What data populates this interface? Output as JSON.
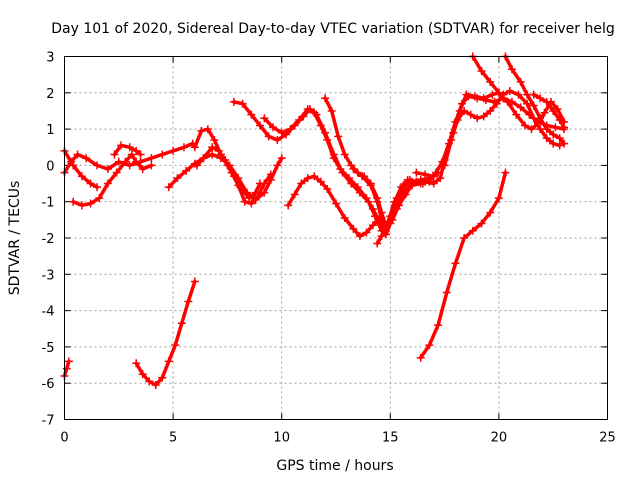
{
  "chart_data": {
    "type": "scatter",
    "title": "Day 101 of 2020, Sidereal Day-to-day VTEC variation (SDTVAR) for receiver helg",
    "xlabel": "GPS time / hours",
    "ylabel": "SDTVAR / TECUs",
    "xlim": [
      0,
      25
    ],
    "ylim": [
      -7,
      3
    ],
    "xticks": [
      0,
      5,
      10,
      15,
      20,
      25
    ],
    "yticks": [
      -7,
      -6,
      -5,
      -4,
      -3,
      -2,
      -1,
      0,
      1,
      2,
      3
    ],
    "xtick_labels": [
      "0",
      "5",
      "10",
      "15",
      "20",
      "25"
    ],
    "ytick_labels": [
      "-7",
      "-6",
      "-5",
      "-4",
      "-3",
      "-2",
      "-1",
      "0",
      "1",
      "2",
      "3"
    ],
    "grid": true,
    "marker": "+",
    "color": "#ff0000",
    "series": [
      {
        "name": "s1",
        "points": [
          [
            0,
            -0.2
          ],
          [
            0.3,
            0.1
          ],
          [
            0.6,
            0.3
          ],
          [
            1.0,
            0.2
          ],
          [
            1.5,
            0.0
          ],
          [
            2.0,
            -0.1
          ],
          [
            2.5,
            0.1
          ],
          [
            3.0,
            0.0
          ],
          [
            3.5,
            0.1
          ],
          [
            4.0,
            0.2
          ],
          [
            4.5,
            0.3
          ],
          [
            5.0,
            0.4
          ],
          [
            5.5,
            0.5
          ],
          [
            5.9,
            0.6
          ]
        ]
      },
      {
        "name": "s2",
        "points": [
          [
            0,
            0.4
          ],
          [
            0.4,
            0.0
          ],
          [
            0.8,
            -0.3
          ],
          [
            1.2,
            -0.5
          ],
          [
            1.5,
            -0.6
          ]
        ]
      },
      {
        "name": "s3",
        "points": [
          [
            0.4,
            -1.0
          ],
          [
            0.8,
            -1.1
          ],
          [
            1.2,
            -1.05
          ],
          [
            1.6,
            -0.9
          ],
          [
            2.0,
            -0.5
          ],
          [
            2.4,
            -0.2
          ],
          [
            2.8,
            0.1
          ],
          [
            3.1,
            0.3
          ],
          [
            3.3,
            0.1
          ],
          [
            3.6,
            -0.1
          ],
          [
            4.0,
            0.0
          ]
        ]
      },
      {
        "name": "s4",
        "points": [
          [
            2.3,
            0.3
          ],
          [
            2.6,
            0.55
          ],
          [
            3.0,
            0.5
          ],
          [
            3.3,
            0.4
          ],
          [
            3.5,
            0.3
          ]
        ]
      },
      {
        "name": "s5",
        "points": [
          [
            0,
            -5.8
          ],
          [
            0.1,
            -5.6
          ],
          [
            0.2,
            -5.4
          ]
        ]
      },
      {
        "name": "s6",
        "points": [
          [
            3.3,
            -5.45
          ],
          [
            3.6,
            -5.75
          ],
          [
            3.9,
            -5.95
          ],
          [
            4.2,
            -6.05
          ],
          [
            4.5,
            -5.85
          ],
          [
            4.8,
            -5.4
          ],
          [
            5.1,
            -4.95
          ],
          [
            5.4,
            -4.35
          ],
          [
            5.7,
            -3.75
          ],
          [
            6.0,
            -3.2
          ]
        ]
      },
      {
        "name": "s7",
        "points": [
          [
            4.8,
            -0.6
          ],
          [
            5.2,
            -0.35
          ],
          [
            5.6,
            -0.15
          ],
          [
            6.0,
            0.05
          ],
          [
            6.4,
            0.2
          ],
          [
            6.8,
            0.3
          ],
          [
            7.2,
            0.2
          ],
          [
            7.6,
            0.0
          ],
          [
            8.0,
            -0.35
          ],
          [
            8.4,
            -0.75
          ],
          [
            8.8,
            -0.95
          ],
          [
            9.2,
            -0.75
          ],
          [
            9.5,
            -0.4
          ],
          [
            9.8,
            0.0
          ],
          [
            10.0,
            0.2
          ]
        ]
      },
      {
        "name": "s8",
        "points": [
          [
            6.0,
            0.5
          ],
          [
            6.3,
            0.95
          ],
          [
            6.6,
            1.0
          ],
          [
            6.9,
            0.7
          ],
          [
            7.2,
            0.3
          ],
          [
            7.5,
            0.0
          ],
          [
            7.8,
            -0.3
          ],
          [
            8.1,
            -0.6
          ],
          [
            8.5,
            -0.9
          ],
          [
            8.8,
            -0.75
          ],
          [
            9.0,
            -0.5
          ]
        ]
      },
      {
        "name": "s9",
        "points": [
          [
            6.1,
            0.0
          ],
          [
            6.4,
            0.2
          ],
          [
            6.8,
            0.5
          ],
          [
            7.1,
            0.4
          ],
          [
            7.4,
            0.15
          ],
          [
            7.7,
            -0.2
          ],
          [
            8.0,
            -0.55
          ],
          [
            8.3,
            -1.0
          ],
          [
            8.6,
            -1.05
          ],
          [
            8.9,
            -0.85
          ],
          [
            9.2,
            -0.5
          ],
          [
            9.5,
            -0.25
          ]
        ]
      },
      {
        "name": "s10",
        "points": [
          [
            7.8,
            1.75
          ],
          [
            8.2,
            1.7
          ],
          [
            8.6,
            1.4
          ],
          [
            9.0,
            1.1
          ],
          [
            9.4,
            0.8
          ],
          [
            9.8,
            0.7
          ],
          [
            10.2,
            0.85
          ],
          [
            10.6,
            1.1
          ],
          [
            11.0,
            1.35
          ],
          [
            11.3,
            1.55
          ],
          [
            11.6,
            1.4
          ],
          [
            12.0,
            0.9
          ],
          [
            12.4,
            0.3
          ],
          [
            12.8,
            -0.2
          ],
          [
            13.2,
            -0.5
          ],
          [
            13.6,
            -0.75
          ],
          [
            14.0,
            -1.0
          ],
          [
            14.3,
            -1.4
          ],
          [
            14.6,
            -1.8
          ],
          [
            14.9,
            -1.6
          ],
          [
            15.2,
            -1.1
          ],
          [
            15.6,
            -0.7
          ],
          [
            16.0,
            -0.45
          ],
          [
            16.4,
            -0.4
          ],
          [
            16.8,
            -0.35
          ],
          [
            17.2,
            -0.2
          ]
        ]
      },
      {
        "name": "s11",
        "points": [
          [
            9.2,
            1.3
          ],
          [
            9.6,
            1.05
          ],
          [
            10.0,
            0.9
          ],
          [
            10.4,
            1.0
          ],
          [
            10.8,
            1.25
          ],
          [
            11.2,
            1.55
          ],
          [
            11.5,
            1.45
          ],
          [
            11.8,
            1.1
          ],
          [
            12.1,
            0.7
          ],
          [
            12.4,
            0.2
          ],
          [
            12.7,
            -0.1
          ],
          [
            13.1,
            -0.35
          ],
          [
            13.5,
            -0.6
          ],
          [
            13.9,
            -0.9
          ],
          [
            14.2,
            -1.2
          ],
          [
            14.5,
            -1.55
          ],
          [
            14.8,
            -1.8
          ],
          [
            15.1,
            -1.5
          ],
          [
            15.4,
            -1.1
          ],
          [
            15.7,
            -0.8
          ],
          [
            16.0,
            -0.55
          ],
          [
            16.4,
            -0.5
          ],
          [
            16.8,
            -0.45
          ]
        ]
      },
      {
        "name": "s12",
        "points": [
          [
            10.3,
            -1.1
          ],
          [
            10.6,
            -0.8
          ],
          [
            10.9,
            -0.5
          ],
          [
            11.2,
            -0.35
          ],
          [
            11.5,
            -0.3
          ],
          [
            11.8,
            -0.45
          ],
          [
            12.1,
            -0.65
          ],
          [
            12.5,
            -1.05
          ],
          [
            12.9,
            -1.45
          ],
          [
            13.3,
            -1.75
          ],
          [
            13.6,
            -1.95
          ],
          [
            13.9,
            -1.85
          ],
          [
            14.2,
            -1.65
          ],
          [
            14.5,
            -1.45
          ]
        ]
      },
      {
        "name": "s13",
        "points": [
          [
            12.0,
            1.85
          ],
          [
            12.3,
            1.5
          ],
          [
            12.6,
            0.8
          ],
          [
            12.9,
            0.3
          ],
          [
            13.2,
            0.0
          ],
          [
            13.5,
            -0.2
          ],
          [
            13.8,
            -0.3
          ],
          [
            14.1,
            -0.5
          ],
          [
            14.4,
            -0.9
          ],
          [
            14.6,
            -1.3
          ],
          [
            14.8,
            -1.7
          ],
          [
            15.0,
            -1.4
          ],
          [
            15.3,
            -0.9
          ],
          [
            15.6,
            -0.55
          ],
          [
            15.9,
            -0.4
          ],
          [
            16.2,
            -0.45
          ],
          [
            16.5,
            -0.5
          ],
          [
            16.8,
            -0.4
          ],
          [
            17.1,
            -0.2
          ]
        ]
      },
      {
        "name": "s14",
        "points": [
          [
            13.3,
            -0.1
          ],
          [
            13.7,
            -0.3
          ],
          [
            14.1,
            -0.55
          ],
          [
            14.4,
            -1.0
          ],
          [
            14.6,
            -1.45
          ],
          [
            14.8,
            -1.9
          ],
          [
            15.0,
            -1.6
          ],
          [
            15.3,
            -1.2
          ],
          [
            15.6,
            -0.85
          ],
          [
            15.9,
            -0.55
          ],
          [
            16.2,
            -0.45
          ]
        ]
      },
      {
        "name": "s15",
        "points": [
          [
            14.4,
            -2.15
          ],
          [
            14.6,
            -1.95
          ],
          [
            14.9,
            -1.55
          ],
          [
            15.2,
            -1.0
          ],
          [
            15.5,
            -0.6
          ],
          [
            15.8,
            -0.4
          ]
        ]
      },
      {
        "name": "s16",
        "points": [
          [
            16.2,
            -0.2
          ],
          [
            16.6,
            -0.25
          ],
          [
            17.0,
            -0.3
          ],
          [
            17.4,
            0.1
          ],
          [
            17.7,
            0.6
          ],
          [
            18.0,
            1.2
          ],
          [
            18.3,
            1.7
          ],
          [
            18.6,
            1.9
          ],
          [
            19.0,
            1.85
          ],
          [
            19.4,
            1.8
          ],
          [
            19.8,
            1.75
          ],
          [
            20.2,
            1.85
          ],
          [
            20.6,
            1.75
          ],
          [
            21.0,
            1.6
          ],
          [
            21.4,
            1.4
          ],
          [
            21.8,
            1.2
          ],
          [
            22.2,
            1.1
          ],
          [
            22.6,
            1.05
          ],
          [
            23.0,
            1.0
          ]
        ]
      },
      {
        "name": "s17",
        "points": [
          [
            16.6,
            -0.45
          ],
          [
            17.0,
            -0.5
          ],
          [
            17.3,
            -0.35
          ],
          [
            17.5,
            0.15
          ],
          [
            17.8,
            0.7
          ],
          [
            18.1,
            1.25
          ],
          [
            18.4,
            1.5
          ],
          [
            18.7,
            1.4
          ],
          [
            19.0,
            1.3
          ],
          [
            19.3,
            1.35
          ],
          [
            19.6,
            1.5
          ],
          [
            19.9,
            1.7
          ],
          [
            20.2,
            1.95
          ],
          [
            20.5,
            2.05
          ],
          [
            20.9,
            1.95
          ],
          [
            21.3,
            1.7
          ],
          [
            21.6,
            1.3
          ],
          [
            21.9,
            1.0
          ],
          [
            22.2,
            0.75
          ],
          [
            22.5,
            0.6
          ],
          [
            22.8,
            0.55
          ]
        ]
      },
      {
        "name": "s18",
        "points": [
          [
            17.5,
            0.0
          ],
          [
            17.9,
            0.9
          ],
          [
            18.2,
            1.5
          ],
          [
            18.5,
            1.95
          ],
          [
            18.9,
            1.9
          ],
          [
            19.3,
            1.85
          ],
          [
            19.7,
            1.95
          ],
          [
            20.0,
            2.0
          ]
        ]
      },
      {
        "name": "s19",
        "points": [
          [
            18.8,
            3.0
          ],
          [
            19.2,
            2.6
          ],
          [
            19.6,
            2.3
          ],
          [
            20.0,
            2.0
          ],
          [
            20.4,
            1.75
          ],
          [
            20.8,
            1.4
          ],
          [
            21.2,
            1.1
          ],
          [
            21.5,
            1.0
          ],
          [
            21.8,
            1.15
          ],
          [
            22.1,
            1.45
          ],
          [
            22.4,
            1.75
          ],
          [
            22.7,
            1.55
          ],
          [
            23.0,
            1.2
          ]
        ]
      },
      {
        "name": "s20",
        "points": [
          [
            20.3,
            3.0
          ],
          [
            20.6,
            2.65
          ],
          [
            21.0,
            2.3
          ],
          [
            21.3,
            1.95
          ],
          [
            21.6,
            1.65
          ],
          [
            21.9,
            1.3
          ],
          [
            22.2,
            1.0
          ],
          [
            22.5,
            0.85
          ],
          [
            22.8,
            0.75
          ],
          [
            23.0,
            0.6
          ]
        ]
      },
      {
        "name": "s21",
        "points": [
          [
            21.6,
            1.95
          ],
          [
            21.9,
            1.85
          ],
          [
            22.2,
            1.75
          ],
          [
            22.5,
            1.5
          ],
          [
            22.8,
            1.25
          ],
          [
            23.0,
            1.05
          ]
        ]
      },
      {
        "name": "s22",
        "points": [
          [
            16.4,
            -5.3
          ],
          [
            16.8,
            -4.95
          ],
          [
            17.2,
            -4.4
          ],
          [
            17.6,
            -3.5
          ],
          [
            18.0,
            -2.7
          ],
          [
            18.4,
            -2.0
          ],
          [
            18.8,
            -1.8
          ],
          [
            19.2,
            -1.6
          ],
          [
            19.6,
            -1.3
          ],
          [
            20.0,
            -0.9
          ],
          [
            20.3,
            -0.2
          ]
        ]
      }
    ]
  }
}
